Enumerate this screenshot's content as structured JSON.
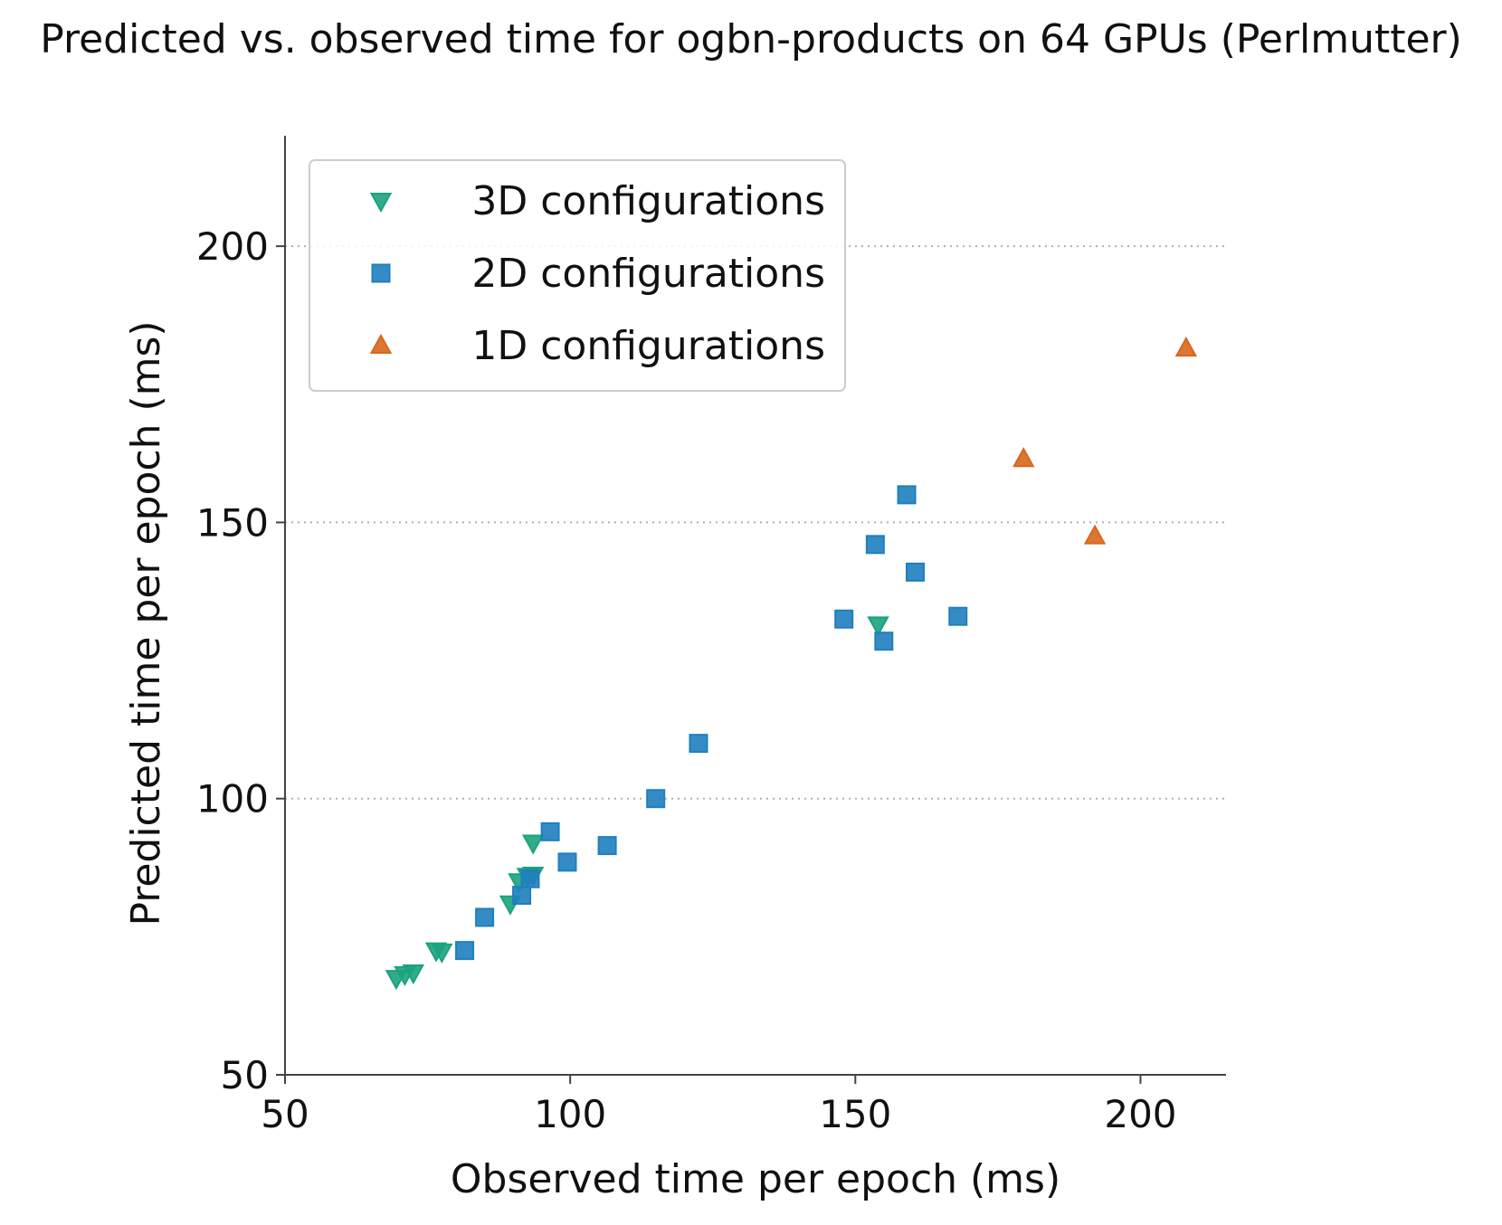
{
  "chart_data": {
    "type": "scatter",
    "title": "Predicted vs. observed time for ogbn-products on 64 GPUs (Perlmutter)",
    "xlabel": "Observed time per epoch (ms)",
    "ylabel": "Predicted time per epoch (ms)",
    "xlim": [
      50,
      215
    ],
    "ylim": [
      50,
      220
    ],
    "xticks": [
      50,
      100,
      150,
      200
    ],
    "yticks": [
      50,
      100,
      150,
      200
    ],
    "xtick_labels": [
      "50",
      "100",
      "150",
      "200"
    ],
    "ytick_labels": [
      "50",
      "100",
      "150",
      "200"
    ],
    "grid": "horizontal dotted at 100, 150, 200",
    "legend_position": "upper-left",
    "series": [
      {
        "name": "3D configurations",
        "marker": "triangle-down",
        "color": "#1ba37e",
        "points": [
          [
            69.5,
            67.5
          ],
          [
            71,
            68.2
          ],
          [
            72.5,
            68.5
          ],
          [
            76.5,
            72.5
          ],
          [
            77.5,
            72.3
          ],
          [
            89.5,
            81
          ],
          [
            91,
            85
          ],
          [
            92.5,
            86
          ],
          [
            93.5,
            86.2
          ],
          [
            93.5,
            92
          ],
          [
            154,
            131.5
          ]
        ]
      },
      {
        "name": "2D configurations",
        "marker": "square",
        "color": "#1f7fbf",
        "points": [
          [
            81.5,
            72.5
          ],
          [
            85,
            78.5
          ],
          [
            91.5,
            82.5
          ],
          [
            93,
            85.5
          ],
          [
            96.5,
            94
          ],
          [
            99.5,
            88.5
          ],
          [
            106.5,
            91.5
          ],
          [
            115,
            100
          ],
          [
            122.5,
            110
          ],
          [
            148,
            132.5
          ],
          [
            153.5,
            146
          ],
          [
            155,
            128.5
          ],
          [
            159,
            155
          ],
          [
            160.5,
            141
          ],
          [
            168,
            133
          ]
        ]
      },
      {
        "name": "1D configurations",
        "marker": "triangle-up",
        "color": "#d9661e",
        "points": [
          [
            179.5,
            161.5
          ],
          [
            192,
            147.5
          ],
          [
            208,
            181.5
          ]
        ]
      }
    ]
  }
}
